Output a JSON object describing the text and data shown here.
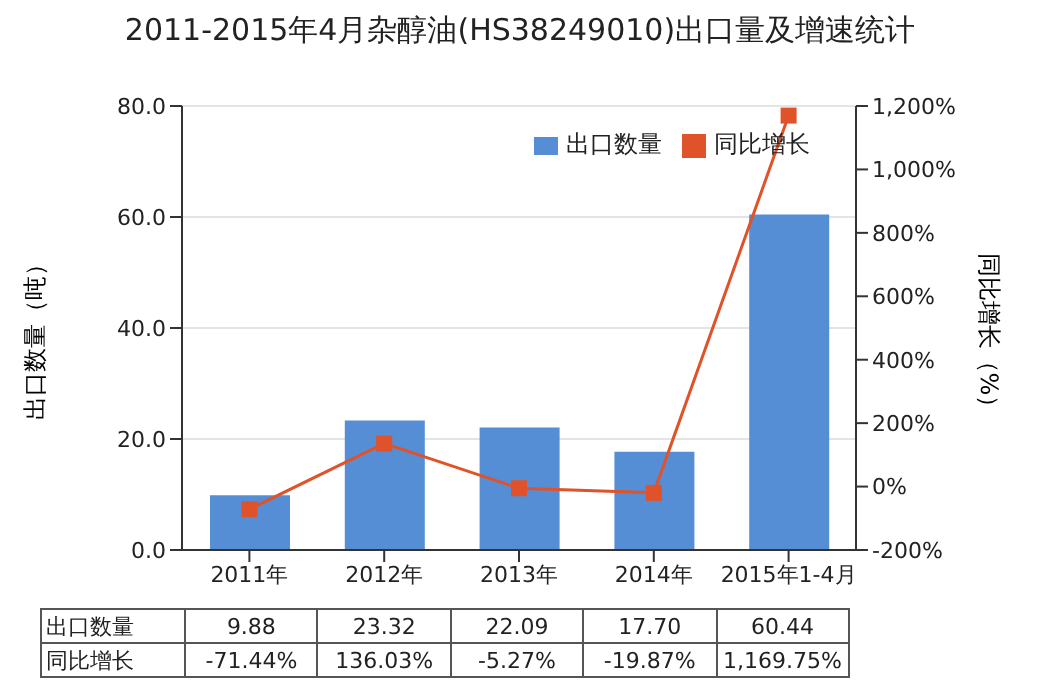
{
  "chart_data": {
    "type": "bar",
    "title": "2011-2015年4月杂醇油(HS38249010)出口量及增速统计",
    "ylabel": "出口数量（吨）",
    "y2label": "同比增长（%）",
    "categories": [
      "2011年",
      "2012年",
      "2013年",
      "2014年",
      "2015年1-4月"
    ],
    "series": [
      {
        "name": "出口数量",
        "color": "#558ed5",
        "values": [
          9.88,
          23.32,
          22.09,
          17.7,
          60.44
        ],
        "value_labels": [
          "9.88",
          "23.32",
          "22.09",
          "17.70",
          "60.44"
        ]
      },
      {
        "name": "同比增长",
        "type": "line",
        "axis": "y2",
        "color": "#e0532a",
        "values": [
          -71.44,
          136.03,
          -5.27,
          -19.87,
          1169.75
        ],
        "value_labels": [
          "-71.44%",
          "136.03%",
          "-5.27%",
          "-19.87%",
          "1,169.75%"
        ]
      }
    ],
    "ylim": [
      0,
      80
    ],
    "yticks": [
      {
        "value": 0,
        "label": "0.0"
      },
      {
        "value": 20,
        "label": "20.0"
      },
      {
        "value": 40,
        "label": "40.0"
      },
      {
        "value": 60,
        "label": "60.0"
      },
      {
        "value": 80,
        "label": "80.0"
      }
    ],
    "y2lim": [
      -200,
      1200
    ],
    "y2ticks": [
      {
        "value": -200,
        "label": "-200%"
      },
      {
        "value": 0,
        "label": "0%"
      },
      {
        "value": 200,
        "label": "200%"
      },
      {
        "value": 400,
        "label": "400%"
      },
      {
        "value": 600,
        "label": "600%"
      },
      {
        "value": 800,
        "label": "800%"
      },
      {
        "value": 1000,
        "label": "1,000%"
      },
      {
        "value": 1200,
        "label": "1,200%"
      }
    ],
    "grid": "y",
    "legend": "top right",
    "marker": "square",
    "line_style": "solid"
  }
}
